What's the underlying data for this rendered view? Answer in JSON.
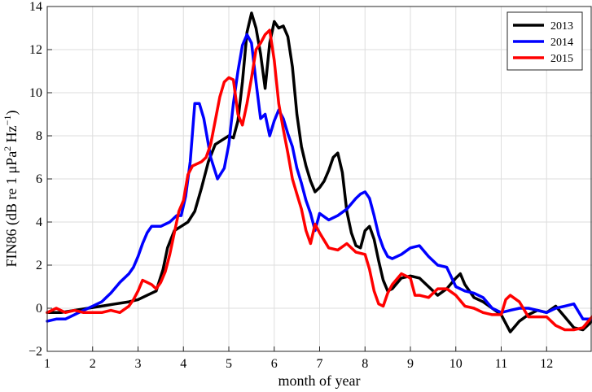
{
  "chart_data": {
    "type": "line",
    "xlabel": "month of year",
    "ylabel_main": "FIN86 (dB re 1 μPa",
    "ylabel_sup1": "2",
    "ylabel_mid": " Hz",
    "ylabel_sup2": "−1",
    "ylabel_end": ")",
    "xlim": [
      1,
      13
    ],
    "ylim": [
      -2,
      14
    ],
    "xticks": [
      1,
      2,
      3,
      4,
      5,
      6,
      7,
      8,
      9,
      10,
      11,
      12
    ],
    "yticks": [
      -2,
      0,
      2,
      4,
      6,
      8,
      10,
      12,
      14
    ],
    "grid": true,
    "legend_position": "top-right",
    "series": [
      {
        "name": "2013",
        "color": "#000000",
        "x": [
          1.0,
          1.3,
          1.6,
          1.9,
          2.2,
          2.5,
          2.8,
          3.0,
          3.2,
          3.4,
          3.55,
          3.65,
          3.8,
          3.95,
          4.1,
          4.25,
          4.4,
          4.55,
          4.7,
          4.85,
          5.0,
          5.1,
          5.2,
          5.3,
          5.4,
          5.5,
          5.6,
          5.7,
          5.8,
          5.9,
          6.0,
          6.1,
          6.2,
          6.3,
          6.4,
          6.5,
          6.6,
          6.7,
          6.8,
          6.9,
          7.0,
          7.1,
          7.2,
          7.3,
          7.4,
          7.5,
          7.6,
          7.7,
          7.8,
          7.9,
          8.0,
          8.1,
          8.2,
          8.3,
          8.4,
          8.5,
          8.6,
          8.8,
          9.0,
          9.2,
          9.4,
          9.6,
          9.8,
          10.0,
          10.1,
          10.2,
          10.4,
          10.6,
          10.8,
          11.0,
          11.2,
          11.4,
          11.6,
          11.8,
          12.0,
          12.2,
          12.4,
          12.6,
          12.8,
          13.0
        ],
        "y": [
          -0.2,
          -0.2,
          -0.1,
          0.0,
          0.1,
          0.2,
          0.3,
          0.4,
          0.6,
          0.8,
          1.8,
          2.8,
          3.6,
          3.8,
          4.0,
          4.5,
          5.6,
          6.8,
          7.6,
          7.8,
          8.0,
          7.9,
          8.7,
          10.5,
          12.8,
          13.7,
          13.0,
          11.8,
          10.2,
          12.3,
          13.3,
          13.0,
          13.1,
          12.6,
          11.2,
          9.0,
          7.5,
          6.6,
          5.9,
          5.4,
          5.6,
          5.9,
          6.4,
          7.0,
          7.2,
          6.3,
          4.5,
          3.5,
          2.9,
          2.8,
          3.6,
          3.8,
          3.2,
          2.2,
          1.3,
          0.8,
          0.9,
          1.4,
          1.5,
          1.4,
          1.0,
          0.6,
          0.9,
          1.4,
          1.6,
          1.1,
          0.5,
          0.3,
          0.0,
          -0.3,
          -1.1,
          -0.6,
          -0.3,
          -0.1,
          -0.2,
          0.1,
          -0.4,
          -0.9,
          -1.0,
          -0.6
        ]
      },
      {
        "name": "2014",
        "color": "#0000ff",
        "x": [
          1.0,
          1.2,
          1.4,
          1.6,
          1.8,
          2.0,
          2.2,
          2.4,
          2.6,
          2.8,
          2.9,
          3.0,
          3.1,
          3.2,
          3.3,
          3.5,
          3.7,
          3.85,
          3.95,
          4.05,
          4.15,
          4.25,
          4.35,
          4.45,
          4.6,
          4.75,
          4.9,
          5.0,
          5.1,
          5.2,
          5.3,
          5.4,
          5.5,
          5.6,
          5.7,
          5.8,
          5.9,
          6.0,
          6.1,
          6.2,
          6.3,
          6.4,
          6.5,
          6.6,
          6.7,
          6.8,
          6.9,
          7.0,
          7.2,
          7.4,
          7.6,
          7.8,
          7.9,
          8.0,
          8.1,
          8.2,
          8.3,
          8.4,
          8.5,
          8.6,
          8.8,
          9.0,
          9.2,
          9.4,
          9.6,
          9.8,
          10.0,
          10.2,
          10.4,
          10.6,
          10.8,
          11.0,
          11.2,
          11.4,
          11.6,
          11.8,
          12.0,
          12.2,
          12.4,
          12.6,
          12.8,
          13.0
        ],
        "y": [
          -0.6,
          -0.5,
          -0.5,
          -0.3,
          -0.1,
          0.1,
          0.3,
          0.7,
          1.2,
          1.6,
          1.9,
          2.4,
          3.0,
          3.5,
          3.8,
          3.8,
          4.0,
          4.3,
          4.3,
          5.2,
          6.8,
          9.5,
          9.5,
          8.8,
          7.0,
          6.0,
          6.5,
          7.6,
          9.5,
          11.0,
          12.2,
          12.7,
          12.3,
          10.5,
          8.8,
          9.0,
          8.0,
          8.7,
          9.2,
          8.8,
          8.1,
          7.5,
          6.5,
          5.8,
          5.0,
          4.4,
          3.6,
          4.4,
          4.1,
          4.3,
          4.6,
          5.1,
          5.3,
          5.4,
          5.1,
          4.3,
          3.4,
          2.8,
          2.4,
          2.3,
          2.5,
          2.8,
          2.9,
          2.4,
          2.0,
          1.9,
          1.0,
          0.8,
          0.7,
          0.5,
          0.0,
          -0.2,
          -0.1,
          0.0,
          0.0,
          -0.1,
          -0.2,
          0.0,
          0.1,
          0.2,
          -0.5,
          -0.5
        ]
      },
      {
        "name": "2015",
        "color": "#ff0000",
        "x": [
          1.0,
          1.2,
          1.4,
          1.6,
          1.8,
          2.0,
          2.2,
          2.4,
          2.6,
          2.8,
          2.9,
          3.0,
          3.1,
          3.2,
          3.3,
          3.4,
          3.5,
          3.6,
          3.7,
          3.8,
          3.9,
          4.0,
          4.1,
          4.2,
          4.4,
          4.5,
          4.6,
          4.7,
          4.8,
          4.9,
          5.0,
          5.1,
          5.2,
          5.3,
          5.4,
          5.5,
          5.6,
          5.7,
          5.8,
          5.9,
          6.0,
          6.1,
          6.2,
          6.3,
          6.4,
          6.5,
          6.6,
          6.7,
          6.8,
          6.9,
          7.0,
          7.2,
          7.4,
          7.6,
          7.8,
          8.0,
          8.1,
          8.2,
          8.3,
          8.4,
          8.5,
          8.6,
          8.8,
          9.0,
          9.1,
          9.2,
          9.4,
          9.6,
          9.8,
          10.0,
          10.2,
          10.4,
          10.6,
          10.8,
          11.0,
          11.1,
          11.2,
          11.4,
          11.6,
          11.8,
          12.0,
          12.2,
          12.4,
          12.6,
          12.8,
          13.0
        ],
        "y": [
          -0.2,
          0.0,
          -0.2,
          -0.1,
          -0.2,
          -0.2,
          -0.2,
          -0.1,
          -0.2,
          0.1,
          0.4,
          0.8,
          1.3,
          1.2,
          1.1,
          0.9,
          1.2,
          1.7,
          2.5,
          3.5,
          4.5,
          5.0,
          6.2,
          6.6,
          6.8,
          7.0,
          7.6,
          8.7,
          9.8,
          10.5,
          10.7,
          10.6,
          9.0,
          8.5,
          9.5,
          10.7,
          12.0,
          12.3,
          12.7,
          12.9,
          11.5,
          9.5,
          8.3,
          7.2,
          6.0,
          5.3,
          4.6,
          3.6,
          3.0,
          3.9,
          3.5,
          2.8,
          2.7,
          3.0,
          2.6,
          2.5,
          1.8,
          0.8,
          0.2,
          0.1,
          0.7,
          1.1,
          1.6,
          1.4,
          0.6,
          0.6,
          0.5,
          0.9,
          0.9,
          0.6,
          0.1,
          0.0,
          -0.2,
          -0.3,
          -0.3,
          0.4,
          0.6,
          0.3,
          -0.4,
          -0.4,
          -0.4,
          -0.8,
          -1.0,
          -1.0,
          -0.9,
          -0.4
        ]
      }
    ]
  }
}
